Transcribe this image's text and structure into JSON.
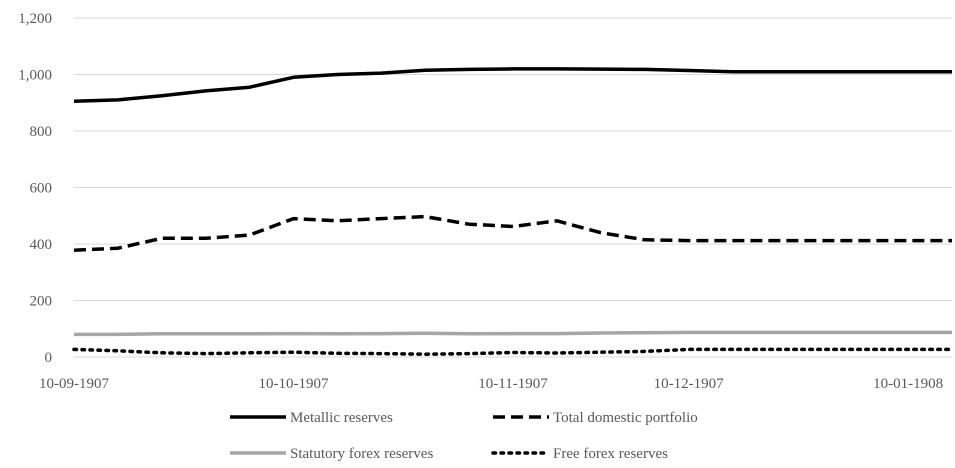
{
  "chart_data": {
    "type": "line",
    "title": "",
    "xlabel": "",
    "ylabel": "",
    "ylim": [
      0,
      1200
    ],
    "y_ticks": [
      "0",
      "200",
      "400",
      "600",
      "800",
      "1,000",
      "1,200"
    ],
    "y_tick_values": [
      0,
      200,
      400,
      600,
      800,
      1000,
      1200
    ],
    "x_tick_labels": [
      "10-09-1907",
      "10-10-1907",
      "10-11-1907",
      "10-12-1907",
      "10-01-1908"
    ],
    "x": [
      "10-09-1907",
      "17-09-1907",
      "24-09-1907",
      "01-10-1907",
      "08-10-1907",
      "15-10-1907",
      "22-10-1907",
      "29-10-1907",
      "05-11-1907",
      "12-11-1907",
      "19-11-1907",
      "26-11-1907",
      "03-12-1907",
      "10-12-1907",
      "17-12-1907",
      "24-12-1907",
      "31-12-1907",
      "07-01-1908",
      "14-01-1908",
      "21-01-1908",
      "28-01-1908"
    ],
    "grid": true,
    "legend_position": "bottom",
    "series": [
      {
        "name": "Metallic reserves",
        "style": "solid",
        "color": "#000000",
        "values": [
          905,
          910,
          925,
          942,
          955,
          990,
          1000,
          1005,
          1015,
          1018,
          1020,
          1020,
          1019,
          1018,
          1014,
          1010,
          1010,
          1010,
          1010,
          1010,
          1010
        ]
      },
      {
        "name": "Total domestic portfolio",
        "style": "dashed",
        "color": "#000000",
        "values": [
          378,
          385,
          420,
          420,
          432,
          490,
          482,
          490,
          497,
          470,
          462,
          482,
          440,
          415,
          412,
          412,
          412,
          412,
          412,
          412,
          412
        ]
      },
      {
        "name": "Statutory forex reserves",
        "style": "solid",
        "color": "#a6a6a6",
        "values": [
          80,
          80,
          82,
          82,
          82,
          83,
          82,
          83,
          84,
          82,
          83,
          83,
          85,
          86,
          87,
          87,
          87,
          87,
          87,
          87,
          87
        ]
      },
      {
        "name": "Free forex reserves",
        "style": "dotted",
        "color": "#000000",
        "values": [
          27,
          22,
          15,
          12,
          15,
          17,
          13,
          12,
          10,
          12,
          16,
          14,
          17,
          20,
          27,
          27,
          27,
          27,
          27,
          27,
          27
        ]
      }
    ]
  }
}
